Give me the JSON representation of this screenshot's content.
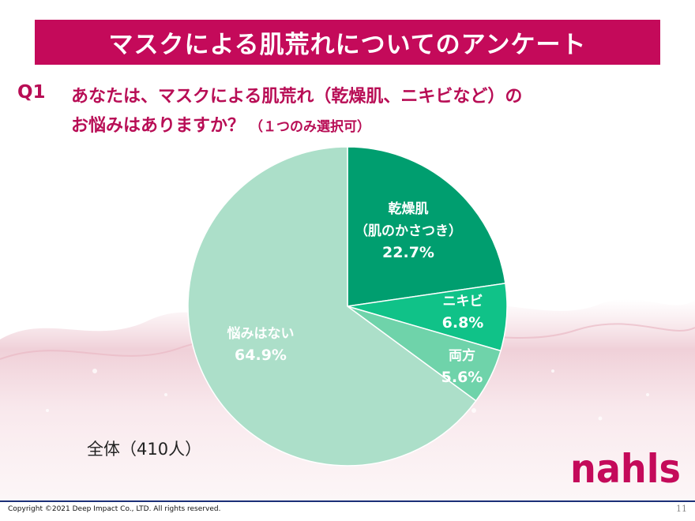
{
  "title": "マスクによる肌荒れについてのアンケート",
  "question": {
    "number": "Q1",
    "line1": "あなたは、マスクによる肌荒れ（乾燥肌、ニキビなど）の",
    "line2": "お悩みはありますか？",
    "note": "（１つのみ選択可）"
  },
  "chart_data": {
    "type": "pie",
    "title": "",
    "slices": [
      {
        "label_lines": [
          "乾燥肌",
          "（肌のかさつき）"
        ],
        "value": 22.7,
        "display": "22.7%",
        "color": "#009e6f"
      },
      {
        "label_lines": [
          "ニキビ"
        ],
        "value": 6.8,
        "display": "6.8%",
        "color": "#10c288"
      },
      {
        "label_lines": [
          "両方"
        ],
        "value": 5.6,
        "display": "5.6%",
        "color": "#6fd3aa"
      },
      {
        "label_lines": [
          "悩みはない"
        ],
        "value": 64.9,
        "display": "64.9%",
        "color": "#acdfc9"
      }
    ],
    "start": "12 o'clock, clockwise"
  },
  "base_label": "全体（410人）",
  "logo_text": "nahls",
  "copyright": "Copyright ©2021  Deep Impact Co., LTD. All rights reserved.",
  "page_number": "11",
  "colors": {
    "brand": "#c40a5a",
    "question": "#b80d55",
    "footer_line": "#1b2f78",
    "logo": "#c40a5a"
  }
}
